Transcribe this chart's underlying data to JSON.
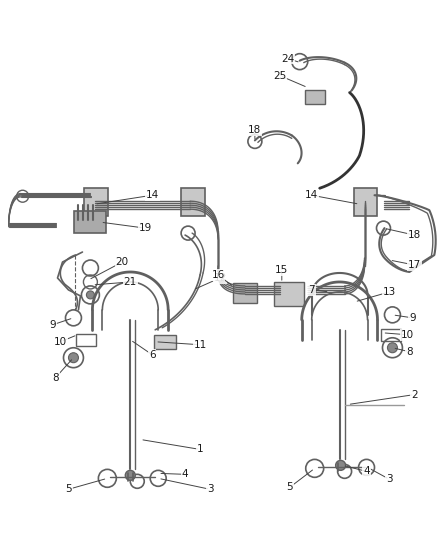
{
  "background": "#ffffff",
  "line_color": "#606060",
  "label_color": "#1a1a1a",
  "lw_main": 1.4,
  "lw_thin": 1.0,
  "lw_thick": 2.0
}
